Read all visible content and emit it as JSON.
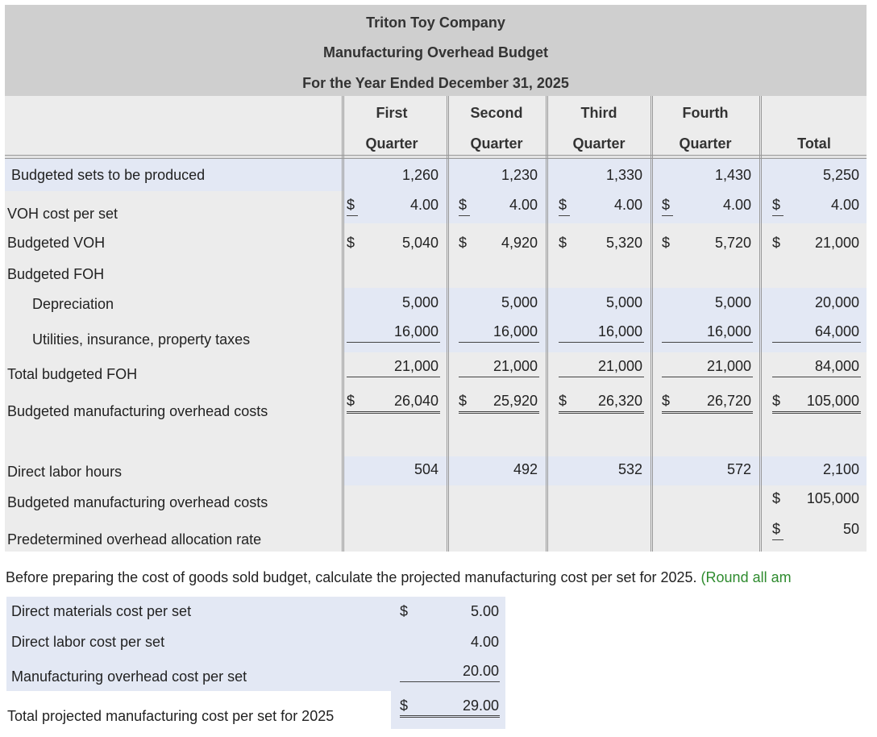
{
  "header": {
    "company": "Triton Toy Company",
    "title": "Manufacturing Overhead Budget",
    "period": "For the Year Ended December 31, 2025"
  },
  "columns": [
    {
      "line1": "First",
      "line2": "Quarter"
    },
    {
      "line1": "Second",
      "line2": "Quarter"
    },
    {
      "line1": "Third",
      "line2": "Quarter"
    },
    {
      "line1": "Fourth",
      "line2": "Quarter"
    },
    {
      "line1": "",
      "line2": "Total"
    }
  ],
  "currency": "$",
  "rows": {
    "sets": {
      "label": "Budgeted sets to be produced",
      "values": [
        "1,260",
        "1,230",
        "1,330",
        "1,430",
        "5,250"
      ]
    },
    "voh_per_set": {
      "label": "VOH cost per set",
      "values": [
        "4.00",
        "4.00",
        "4.00",
        "4.00",
        "4.00"
      ]
    },
    "budgeted_voh": {
      "label": "Budgeted VOH",
      "values": [
        "5,040",
        "4,920",
        "5,320",
        "5,720",
        "21,000"
      ]
    },
    "foh": {
      "label": "Budgeted FOH"
    },
    "depreciation": {
      "label": "Depreciation",
      "values": [
        "5,000",
        "5,000",
        "5,000",
        "5,000",
        "20,000"
      ]
    },
    "utilities": {
      "label": "Utilities, insurance, property taxes",
      "values": [
        "16,000",
        "16,000",
        "16,000",
        "16,000",
        "64,000"
      ]
    },
    "total_foh": {
      "label": "Total budgeted FOH",
      "values": [
        "21,000",
        "21,000",
        "21,000",
        "21,000",
        "84,000"
      ]
    },
    "moh_costs": {
      "label": "Budgeted manufacturing overhead costs",
      "values": [
        "26,040",
        "25,920",
        "26,320",
        "26,720",
        "105,000"
      ]
    },
    "dlh": {
      "label": "Direct labor hours",
      "values": [
        "504",
        "492",
        "532",
        "572",
        "2,100"
      ]
    },
    "moh_costs2": {
      "label": "Budgeted manufacturing overhead costs",
      "value": "105,000"
    },
    "poh_rate": {
      "label": "Predetermined overhead allocation rate",
      "value": "50"
    }
  },
  "instruction": {
    "text": "Before preparing the cost of goods sold budget, calculate the projected manufacturing cost per set for 2025.",
    "hint": "(Round all am"
  },
  "cost_per_set": {
    "dm": {
      "label": "Direct materials cost per set",
      "value": "5.00"
    },
    "dl": {
      "label": "Direct labor cost per set",
      "value": "4.00"
    },
    "moh": {
      "label": "Manufacturing overhead cost per set",
      "value": "20.00"
    },
    "total": {
      "label": "Total projected manufacturing cost per set for 2025",
      "value": "29.00"
    }
  }
}
